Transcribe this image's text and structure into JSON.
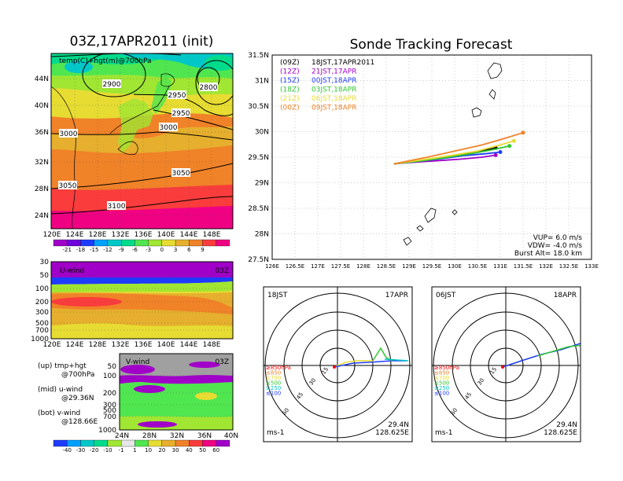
{
  "map_panel": {
    "title": "03Z,17APR2011 (init)",
    "label": "temp(C)+hgt(m)@700hPa",
    "lat_ticks": [
      "44N",
      "40N",
      "36N",
      "32N",
      "28N",
      "24N"
    ],
    "lon_ticks": [
      "120E",
      "124E",
      "128E",
      "132E",
      "136E",
      "140E",
      "144E",
      "148E"
    ],
    "contours": [
      "2800",
      "2900",
      "2950",
      "2950",
      "3000",
      "3000",
      "3050",
      "3050",
      "3100"
    ],
    "colorbar": {
      "labels": [
        "-21",
        "-18",
        "-15",
        "-12",
        "-9",
        "-6",
        "-3",
        "0",
        "3",
        "6",
        "9"
      ],
      "colors": [
        "#a000c8",
        "#6e00dc",
        "#1e3cff",
        "#00a0ff",
        "#00c8c8",
        "#00dc8c",
        "#50e650",
        "#a0e632",
        "#e6dc32",
        "#e6af2d",
        "#f08228",
        "#fa3c3c",
        "#f00082"
      ]
    }
  },
  "uwind_panel": {
    "label": "U-wind",
    "time": "03Z",
    "y_ticks": [
      "30",
      "50",
      "100",
      "200",
      "300",
      "500",
      "700",
      "1000"
    ],
    "x_ticks": [
      "120E",
      "124E",
      "128E",
      "132E",
      "136E",
      "140E",
      "144E",
      "148E"
    ]
  },
  "vwind_panel": {
    "label": "V-wind",
    "time": "03Z",
    "y_ticks": [
      "50",
      "100",
      "200",
      "300",
      "500",
      "700",
      "1000"
    ],
    "x_ticks": [
      "24N",
      "28N",
      "32N",
      "36N",
      "40N"
    ],
    "colorbar": {
      "labels": [
        "-40",
        "-30",
        "-20",
        "-10",
        "-1",
        "1",
        "10",
        "20",
        "30",
        "40",
        "50",
        "60"
      ],
      "colors": [
        "#1e3cff",
        "#00a0ff",
        "#00c8c8",
        "#00dc8c",
        "#a0e632",
        "#e6e6e6",
        "#50e650",
        "#e6dc32",
        "#e6af2d",
        "#f08228",
        "#fa3c3c",
        "#f00082",
        "#a000c8"
      ]
    }
  },
  "legend_notes": [
    {
      "a": "(up) tmp+hgt",
      "b": "@700hPa"
    },
    {
      "a": "(mid) u-wind",
      "b": "@29.36N"
    },
    {
      "a": "(bot) v-wind",
      "b": "@128.66E"
    }
  ],
  "track_panel": {
    "title": "Sonde Tracking Forecast",
    "lat_ticks": [
      "31.5N",
      "31N",
      "30.5N",
      "30N",
      "29.5N",
      "29N",
      "28.5N",
      "28N",
      "27.5N"
    ],
    "lon_ticks": [
      "126E",
      "126.5E",
      "127E",
      "127.5E",
      "128E",
      "128.5E",
      "129E",
      "129.5E",
      "130E",
      "130.5E",
      "131E",
      "131.5E",
      "132E",
      "132.5E",
      "133E"
    ],
    "launches": [
      {
        "tag": "(09Z)",
        "label": "18JST,17APR2011",
        "color": "#000000"
      },
      {
        "tag": "(12Z)",
        "label": "21JST,17APR",
        "color": "#a000c8"
      },
      {
        "tag": "(15Z)",
        "label": "00JST,18APR",
        "color": "#1e3cff"
      },
      {
        "tag": "(18Z)",
        "label": "03JST,18APR",
        "color": "#32c832"
      },
      {
        "tag": "(21Z)",
        "label": "06JST,18APR",
        "color": "#e6dc32"
      },
      {
        "tag": "(00Z)",
        "label": "09JST,18APR",
        "color": "#f08228"
      }
    ],
    "params": [
      "VUP= 6.0 m/s",
      "VDW= -4.0 m/s",
      "Burst Alt= 18.0 km"
    ]
  },
  "chart_data": {
    "type": "line",
    "title": "Sonde Tracking Forecast",
    "xlim": [
      126,
      133
    ],
    "ylim": [
      27.5,
      31.5
    ],
    "grid": true,
    "legend_position": "top-left",
    "series": [
      {
        "name": "(09Z) 18JST,17APR2011",
        "color": "#000000",
        "x": [
          128.67,
          129.0,
          129.5,
          130.0,
          130.5,
          130.9
        ],
        "y": [
          29.37,
          29.4,
          29.46,
          29.53,
          29.61,
          29.68
        ]
      },
      {
        "name": "(12Z) 21JST,17APR",
        "color": "#a000c8",
        "x": [
          128.67,
          129.1,
          129.6,
          130.1,
          130.6,
          130.9
        ],
        "y": [
          29.37,
          29.4,
          29.43,
          29.46,
          29.5,
          29.54
        ]
      },
      {
        "name": "(15Z) 00JST,18APR",
        "color": "#1e3cff",
        "x": [
          128.67,
          129.2,
          129.7,
          130.2,
          130.7,
          131.0
        ],
        "y": [
          29.37,
          29.42,
          29.47,
          29.53,
          29.57,
          29.6
        ]
      },
      {
        "name": "(18Z) 03JST,18APR",
        "color": "#32c832",
        "x": [
          128.67,
          129.3,
          129.8,
          130.3,
          130.8,
          131.2
        ],
        "y": [
          29.37,
          29.43,
          29.49,
          29.56,
          29.64,
          29.72
        ]
      },
      {
        "name": "(21Z) 06JST,18APR",
        "color": "#e6dc32",
        "x": [
          128.67,
          129.3,
          129.9,
          130.5,
          131.0,
          131.3
        ],
        "y": [
          29.37,
          29.45,
          29.53,
          29.62,
          29.74,
          29.82
        ]
      },
      {
        "name": "(00Z) 09JST,18APR",
        "color": "#f08228",
        "x": [
          128.67,
          129.4,
          130.0,
          130.6,
          131.1,
          131.5
        ],
        "y": [
          29.37,
          29.5,
          29.62,
          29.74,
          29.87,
          29.98
        ]
      }
    ]
  },
  "polar_left": {
    "time": "18JST",
    "date": "17APR",
    "rings": [
      "15",
      "30",
      "45",
      "60"
    ],
    "levels": [
      {
        "label": "≥850hPa",
        "color": "#ff0000"
      },
      {
        "label": "≤850",
        "color": "#f08228"
      },
      {
        "label": "≤700",
        "color": "#e6dc32"
      },
      {
        "label": "≤500",
        "color": "#32c832"
      },
      {
        "label": "≤250",
        "color": "#00c8c8"
      },
      {
        "label": "≤100",
        "color": "#1e3cff"
      }
    ],
    "unit": "ms-1",
    "lat": "29.4N",
    "lon": "128.625E"
  },
  "polar_right": {
    "time": "06JST",
    "date": "18APR",
    "rings": [
      "15",
      "30",
      "45",
      "60"
    ],
    "levels": [
      {
        "label": "≥850hPa",
        "color": "#ff0000"
      },
      {
        "label": "≤850",
        "color": "#f08228"
      },
      {
        "label": "≤700",
        "color": "#e6dc32"
      },
      {
        "label": "≤500",
        "color": "#32c832"
      },
      {
        "label": "≤250",
        "color": "#00c8c8"
      },
      {
        "label": "≤100",
        "color": "#1e3cff"
      }
    ],
    "unit": "ms-1",
    "lat": "29.4N",
    "lon": "128.625E"
  }
}
